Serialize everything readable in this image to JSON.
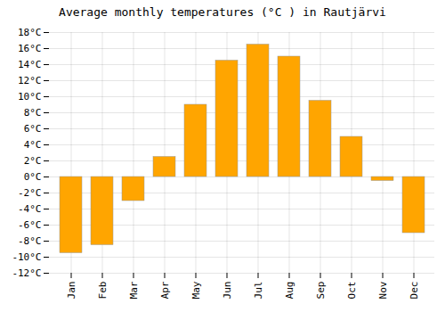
{
  "chart_data": {
    "type": "bar",
    "title": "Average monthly temperatures (°C ) in Rautjärvi",
    "categories": [
      "Jan",
      "Feb",
      "Mar",
      "Apr",
      "May",
      "Jun",
      "Jul",
      "Aug",
      "Sep",
      "Oct",
      "Nov",
      "Dec"
    ],
    "values": [
      -9.5,
      -8.5,
      -3.0,
      2.5,
      9.0,
      14.5,
      16.5,
      15.0,
      9.5,
      5.0,
      -0.5,
      -7.0
    ],
    "color": "#FFA500",
    "ylim": [
      -12,
      18
    ],
    "yticks": [
      {
        "value": -12,
        "label": "-12°C"
      },
      {
        "value": -10,
        "label": "-10°C"
      },
      {
        "value": -8,
        "label": "-8°C"
      },
      {
        "value": -6,
        "label": "-6°C"
      },
      {
        "value": -4,
        "label": "-4°C"
      },
      {
        "value": -2,
        "label": "-2°C"
      },
      {
        "value": 0,
        "label": "0°C"
      },
      {
        "value": 2,
        "label": "2°C"
      },
      {
        "value": 4,
        "label": "4°C"
      },
      {
        "value": 6,
        "label": "6°C"
      },
      {
        "value": 8,
        "label": "8°C"
      },
      {
        "value": 10,
        "label": "10°C"
      },
      {
        "value": 12,
        "label": "12°C"
      },
      {
        "value": 14,
        "label": "14°C"
      },
      {
        "value": 16,
        "label": "16°C"
      },
      {
        "value": 18,
        "label": "18°C"
      }
    ],
    "grid": true
  }
}
